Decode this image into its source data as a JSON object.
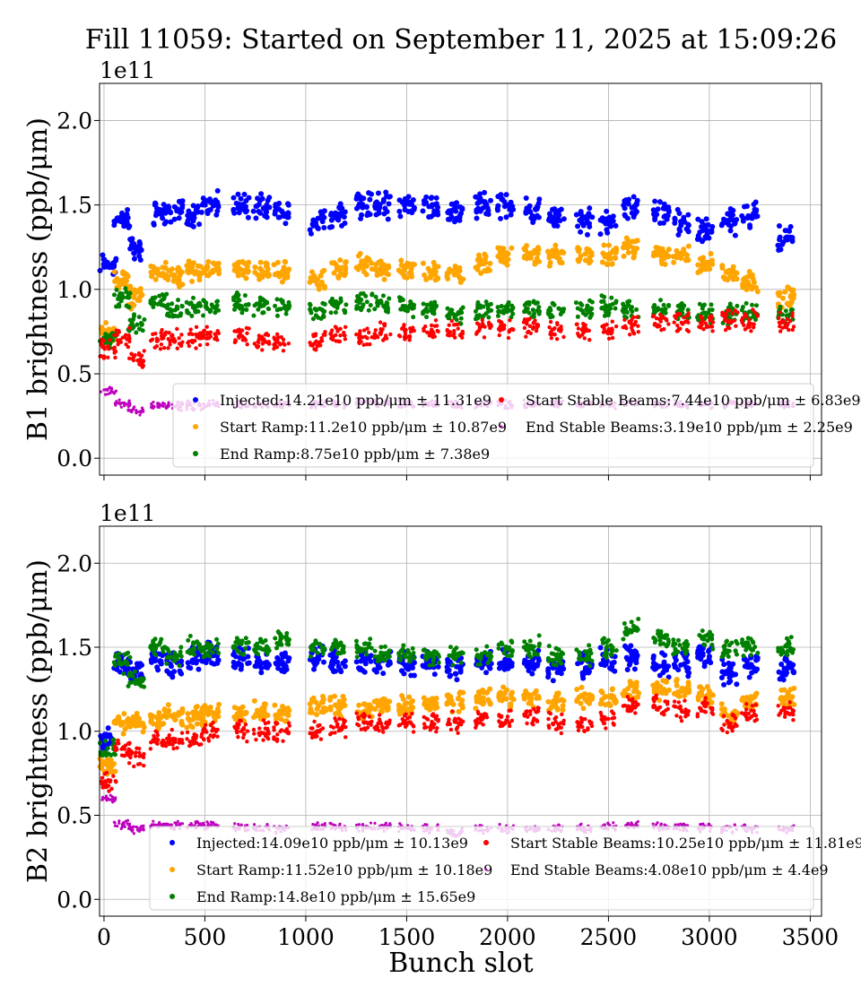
{
  "chart_data": [
    {
      "type": "scatter",
      "title": "Fill 11059: Started on September 11, 2025 at 15:09:26",
      "ylabel": "B1 brightness (ppb/μm)",
      "xlabel": "",
      "y_multiplier": "1e11",
      "xlim": [
        -22,
        3556
      ],
      "ylim": [
        -0.1,
        2.22
      ],
      "xticks": [
        0,
        500,
        1000,
        1500,
        2000,
        2500,
        3000,
        3500
      ],
      "xtick_labels_shown": false,
      "yticks": [
        "0.0",
        "0.5",
        "1.0",
        "1.5",
        "2.0"
      ],
      "grid": true,
      "legend_position": "lower-center",
      "x": [
        20,
        90,
        160,
        270,
        350,
        450,
        530,
        680,
        780,
        880,
        1060,
        1160,
        1290,
        1380,
        1500,
        1620,
        1740,
        1880,
        1990,
        2120,
        2240,
        2380,
        2500,
        2610,
        2760,
        2860,
        2980,
        3100,
        3200,
        3380
      ],
      "series": [
        {
          "name": "Injected",
          "legend": "Injected:14.21e10 ppb/μm ± 11.31e9",
          "color": "#0000ff",
          "y": [
            1.15,
            1.4,
            1.25,
            1.45,
            1.47,
            1.45,
            1.5,
            1.5,
            1.48,
            1.45,
            1.4,
            1.45,
            1.5,
            1.5,
            1.5,
            1.5,
            1.45,
            1.5,
            1.5,
            1.47,
            1.42,
            1.4,
            1.4,
            1.5,
            1.45,
            1.4,
            1.35,
            1.4,
            1.45,
            1.3
          ]
        },
        {
          "name": "Start Ramp",
          "legend": "Start Ramp:11.2e10 ppb/μm ± 10.87e9",
          "color": "#ffa500",
          "y": [
            0.75,
            1.05,
            0.95,
            1.1,
            1.08,
            1.1,
            1.12,
            1.12,
            1.1,
            1.1,
            1.05,
            1.12,
            1.15,
            1.12,
            1.12,
            1.1,
            1.1,
            1.15,
            1.2,
            1.2,
            1.2,
            1.2,
            1.2,
            1.25,
            1.2,
            1.2,
            1.15,
            1.1,
            1.05,
            0.95
          ]
        },
        {
          "name": "End Ramp",
          "legend": "End Ramp:8.75e10 ppb/μm ± 7.38e9",
          "color": "#008000",
          "y": [
            0.7,
            0.95,
            0.8,
            0.92,
            0.88,
            0.9,
            0.9,
            0.92,
            0.9,
            0.9,
            0.88,
            0.9,
            0.92,
            0.9,
            0.9,
            0.88,
            0.85,
            0.88,
            0.88,
            0.88,
            0.88,
            0.88,
            0.9,
            0.88,
            0.88,
            0.88,
            0.85,
            0.85,
            0.85,
            0.85
          ]
        },
        {
          "name": "Start Stable Beams",
          "legend": "Start Stable Beams:7.44e10 ppb/μm ± 6.83e9",
          "color": "#ff0000",
          "y": [
            0.65,
            0.72,
            0.6,
            0.7,
            0.7,
            0.72,
            0.72,
            0.72,
            0.7,
            0.7,
            0.7,
            0.72,
            0.72,
            0.75,
            0.75,
            0.75,
            0.75,
            0.77,
            0.78,
            0.78,
            0.75,
            0.75,
            0.75,
            0.78,
            0.8,
            0.8,
            0.8,
            0.82,
            0.82,
            0.8
          ]
        },
        {
          "name": "End Stable Beams",
          "legend": "End Stable Beams:3.19e10 ppb/μm ± 2.25e9",
          "color": "#bf00bf",
          "y": [
            0.4,
            0.32,
            0.28,
            0.31,
            0.31,
            0.31,
            0.32,
            0.32,
            0.32,
            0.32,
            0.32,
            0.32,
            0.33,
            0.33,
            0.32,
            0.32,
            0.32,
            0.32,
            0.32,
            0.32,
            0.32,
            0.32,
            0.32,
            0.33,
            0.32,
            0.32,
            0.32,
            0.32,
            0.32,
            0.32
          ]
        }
      ]
    },
    {
      "type": "scatter",
      "ylabel": "B2 brightness (ppb/μm)",
      "xlabel": "Bunch slot",
      "y_multiplier": "1e11",
      "xlim": [
        -22,
        3556
      ],
      "ylim": [
        -0.1,
        2.22
      ],
      "xticks": [
        "0",
        "500",
        "1000",
        "1500",
        "2000",
        "2500",
        "3000",
        "3500"
      ],
      "yticks": [
        "0.0",
        "0.5",
        "1.0",
        "1.5",
        "2.0"
      ],
      "grid": true,
      "legend_position": "lower-center",
      "x": [
        20,
        90,
        160,
        270,
        350,
        450,
        530,
        680,
        780,
        880,
        1060,
        1160,
        1290,
        1380,
        1500,
        1620,
        1740,
        1880,
        1990,
        2120,
        2240,
        2380,
        2500,
        2610,
        2760,
        2860,
        2980,
        3100,
        3200,
        3380
      ],
      "series": [
        {
          "name": "Injected",
          "legend": "Injected:14.09e10 ppb/μm ± 10.13e9",
          "color": "#0000ff",
          "y": [
            0.95,
            1.42,
            1.35,
            1.42,
            1.4,
            1.43,
            1.45,
            1.42,
            1.4,
            1.4,
            1.45,
            1.42,
            1.42,
            1.4,
            1.4,
            1.4,
            1.38,
            1.42,
            1.42,
            1.42,
            1.38,
            1.4,
            1.42,
            1.45,
            1.4,
            1.4,
            1.45,
            1.35,
            1.4,
            1.38
          ]
        },
        {
          "name": "Start Ramp",
          "legend": "Start Ramp:11.52e10 ppb/μm ± 10.18e9",
          "color": "#ffa500",
          "y": [
            0.8,
            1.05,
            1.05,
            1.08,
            1.1,
            1.08,
            1.1,
            1.1,
            1.12,
            1.1,
            1.15,
            1.15,
            1.12,
            1.15,
            1.15,
            1.15,
            1.18,
            1.2,
            1.2,
            1.2,
            1.18,
            1.2,
            1.2,
            1.25,
            1.25,
            1.25,
            1.22,
            1.1,
            1.2,
            1.2
          ]
        },
        {
          "name": "End Ramp",
          "legend": "End Ramp:14.8e10 ppb/μm ± 15.65e9",
          "color": "#008000",
          "y": [
            0.9,
            1.4,
            1.3,
            1.5,
            1.45,
            1.5,
            1.5,
            1.5,
            1.5,
            1.55,
            1.5,
            1.5,
            1.5,
            1.45,
            1.45,
            1.45,
            1.45,
            1.45,
            1.5,
            1.5,
            1.45,
            1.45,
            1.5,
            1.6,
            1.55,
            1.5,
            1.55,
            1.5,
            1.5,
            1.5
          ]
        },
        {
          "name": "Start Stable Beams",
          "legend": "Start Stable Beams:10.25e10 ppb/μm ± 11.81e9",
          "color": "#ff0000",
          "y": [
            0.7,
            0.9,
            0.85,
            0.95,
            0.95,
            0.95,
            1.0,
            1.0,
            1.0,
            1.0,
            1.0,
            1.02,
            1.05,
            1.05,
            1.05,
            1.05,
            1.05,
            1.08,
            1.08,
            1.1,
            1.05,
            1.05,
            1.08,
            1.15,
            1.15,
            1.12,
            1.15,
            1.05,
            1.1,
            1.12
          ]
        },
        {
          "name": "End Stable Beams",
          "legend": "End Stable Beams:4.08e10 ppb/μm ± 4.4e9",
          "color": "#bf00bf",
          "y": [
            0.6,
            0.44,
            0.42,
            0.44,
            0.44,
            0.44,
            0.44,
            0.43,
            0.42,
            0.42,
            0.43,
            0.43,
            0.43,
            0.43,
            0.43,
            0.42,
            0.4,
            0.42,
            0.42,
            0.42,
            0.42,
            0.42,
            0.43,
            0.44,
            0.43,
            0.43,
            0.43,
            0.42,
            0.42,
            0.42
          ]
        }
      ]
    }
  ]
}
